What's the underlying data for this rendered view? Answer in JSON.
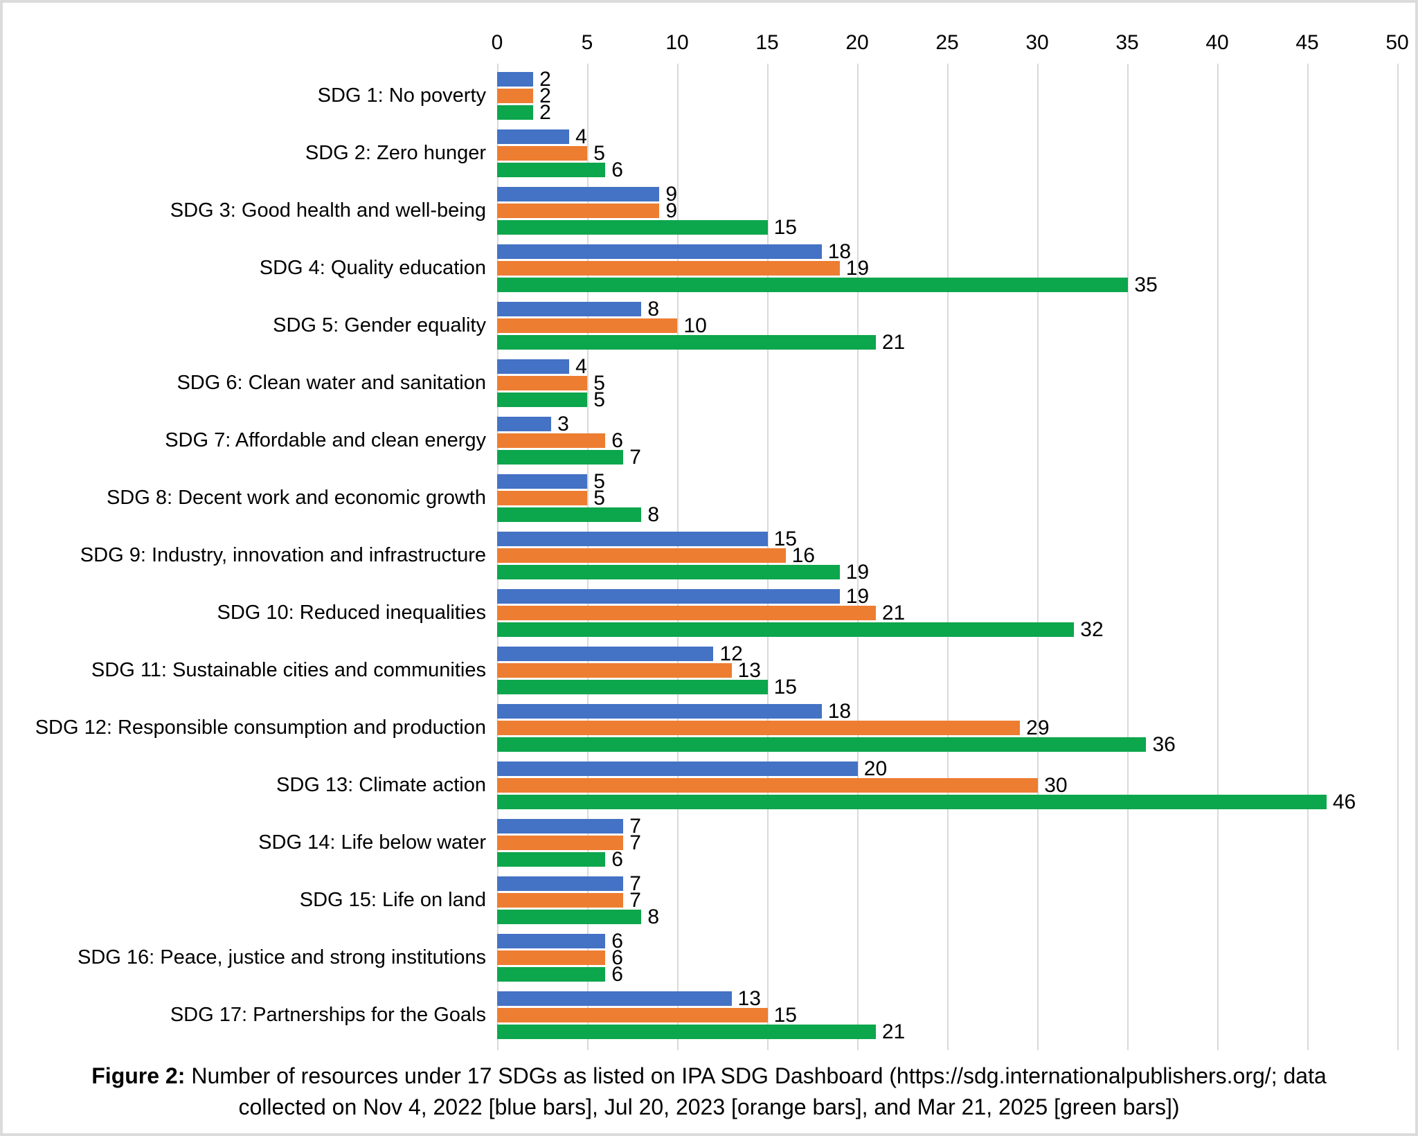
{
  "figure": {
    "caption_prefix": "Figure 2:",
    "caption_line1_rest": "Number of resources under 17 SDGs as listed on IPA SDG Dashboard (https://sdg.internationalpublishers.org/; data",
    "caption_line2": "collected on Nov 4, 2022 [blue bars], Jul 20, 2023 [orange bars], and Mar 21, 2025 [green bars])"
  },
  "chart_data": {
    "type": "bar",
    "orientation": "horizontal",
    "title": "",
    "xlabel": "",
    "ylabel": "",
    "grid": true,
    "value_labels": true,
    "legend": "none (series identified by bar color in caption)",
    "x_axis": {
      "position": "top",
      "min": 0,
      "max": 50,
      "tick_step": 5,
      "ticks": [
        0,
        5,
        10,
        15,
        20,
        25,
        30,
        35,
        40,
        45,
        50
      ]
    },
    "categories": [
      "SDG 1: No poverty",
      "SDG 2: Zero hunger",
      "SDG 3: Good health and well-being",
      "SDG 4: Quality education",
      "SDG 5: Gender equality",
      "SDG 6: Clean water and sanitation",
      "SDG 7: Affordable and clean energy",
      "SDG 8: Decent work and economic growth",
      "SDG 9: Industry, innovation and infrastructure",
      "SDG 10: Reduced inequalities",
      "SDG 11: Sustainable cities and communities",
      "SDG 12: Responsible consumption and production",
      "SDG 13: Climate action",
      "SDG 14: Life below water",
      "SDG 15: Life on land",
      "SDG 16: Peace, justice and strong institutions",
      "SDG 17: Partnerships for the Goals"
    ],
    "series": [
      {
        "name": "Nov 4, 2022",
        "bar_color_label": "blue",
        "color": "#4472C4",
        "values": [
          2,
          4,
          9,
          18,
          8,
          4,
          3,
          5,
          15,
          19,
          12,
          18,
          20,
          7,
          7,
          6,
          13
        ]
      },
      {
        "name": "Jul 20, 2023",
        "bar_color_label": "orange",
        "color": "#ED7D31",
        "values": [
          2,
          5,
          9,
          19,
          10,
          5,
          6,
          5,
          16,
          21,
          13,
          29,
          30,
          7,
          7,
          6,
          15
        ]
      },
      {
        "name": "Mar 21, 2025",
        "bar_color_label": "green",
        "color": "#0CA64C",
        "values": [
          2,
          6,
          15,
          35,
          21,
          5,
          7,
          8,
          19,
          32,
          15,
          36,
          46,
          6,
          8,
          6,
          21
        ]
      }
    ],
    "colors": {
      "gridline": "#D9D9D9",
      "frame_border": "#DBDBDB",
      "text": "#000000",
      "background": "#FFFFFF"
    }
  }
}
